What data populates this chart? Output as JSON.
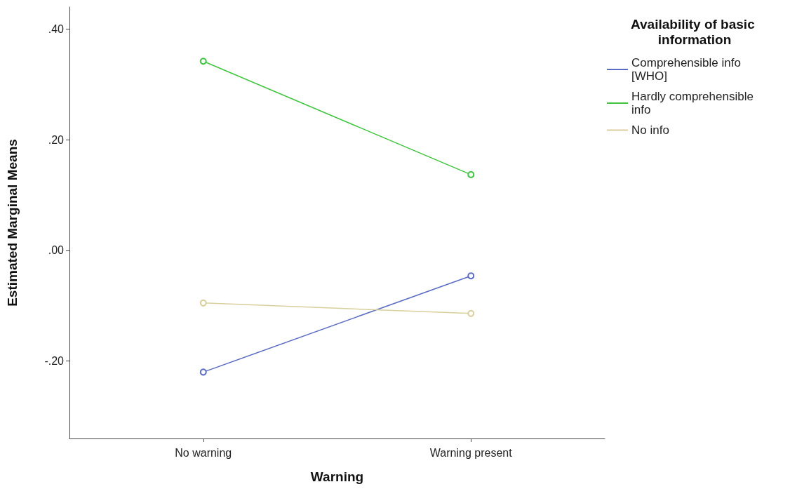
{
  "chart_data": {
    "type": "line",
    "xlabel": "Warning",
    "ylabel": "Estimated Marginal Means",
    "legend_title": "Availability of basic information",
    "categories": [
      "No warning",
      "Warning present"
    ],
    "series": [
      {
        "name": "Comprehensible info [WHO]",
        "color": "#5b6cc4",
        "values": [
          -0.22,
          -0.046
        ]
      },
      {
        "name": "Hardly comprehensible info",
        "color": "#3fc43f",
        "values": [
          0.342,
          0.137
        ]
      },
      {
        "name": "No info",
        "color": "#d8cf9c",
        "values": [
          -0.095,
          -0.114
        ]
      }
    ],
    "ylim": [
      -0.34,
      0.44
    ],
    "yticks": [
      {
        "value": -0.2,
        "label": "-.20"
      },
      {
        "value": 0,
        "label": ".00"
      },
      {
        "value": 0.2,
        "label": ".20"
      },
      {
        "value": 0.4,
        "label": ".40"
      }
    ],
    "grid": false,
    "legend": "top right",
    "marker": "circle",
    "line_style": "solid"
  }
}
